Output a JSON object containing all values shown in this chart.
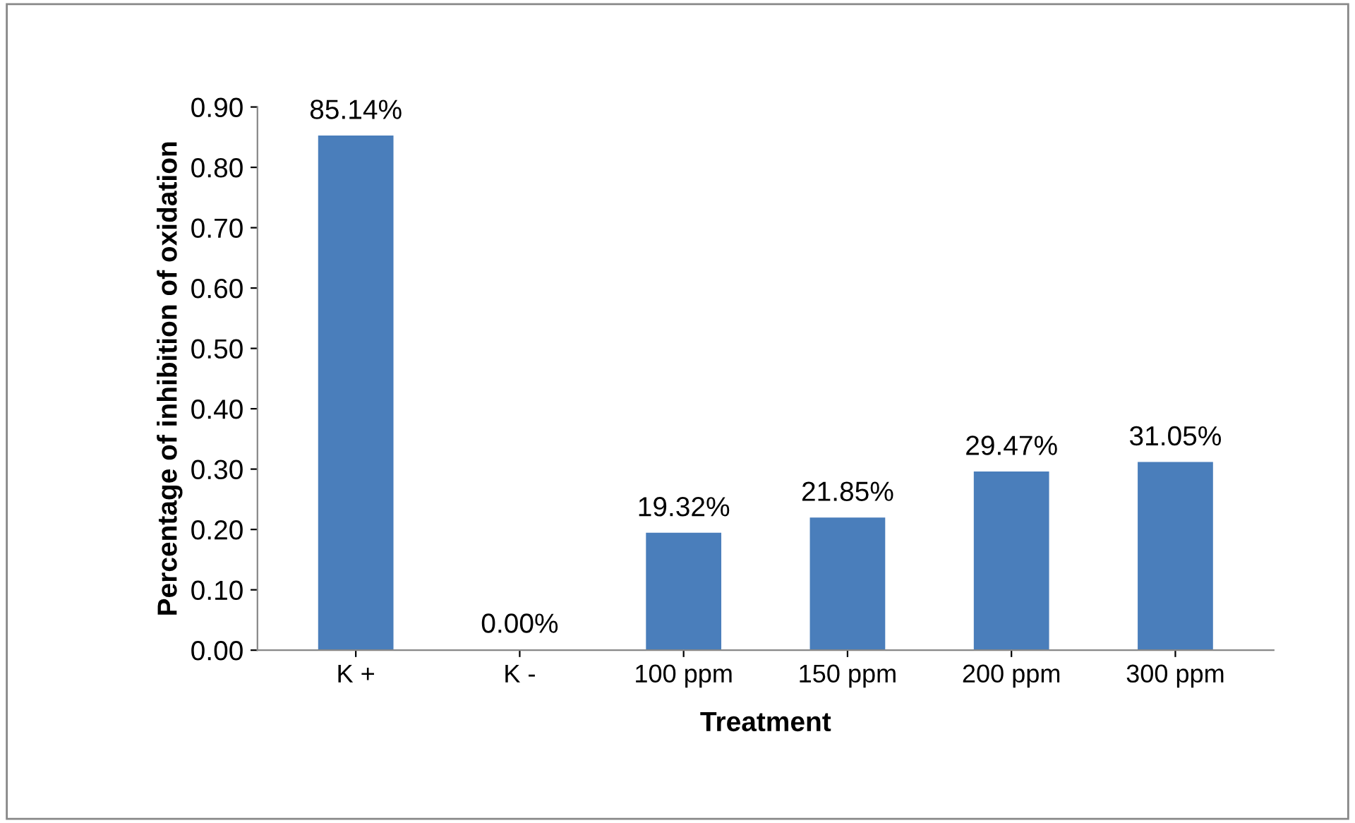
{
  "chart_data": {
    "type": "bar",
    "xlabel": "Treatment",
    "ylabel": "Percentage of inhibition of oxidation",
    "categories": [
      "K +",
      "K -",
      "100 ppm",
      "150 ppm",
      "200 ppm",
      "300 ppm"
    ],
    "values": [
      0.8514,
      0.0,
      0.1932,
      0.2185,
      0.2947,
      0.3105
    ],
    "value_labels": [
      "85.14%",
      "0.00%",
      "19.32%",
      "21.85%",
      "29.47%",
      "31.05%"
    ],
    "color": "#4a7ebb",
    "ylim": [
      0,
      0.9
    ],
    "yticks": [
      {
        "value": 0,
        "label": "0.00"
      },
      {
        "value": 0.1,
        "label": "0.10"
      },
      {
        "value": 0.2,
        "label": "0.20"
      },
      {
        "value": 0.3,
        "label": "0.30"
      },
      {
        "value": 0.4,
        "label": "0.40"
      },
      {
        "value": 0.5,
        "label": "0.50"
      },
      {
        "value": 0.6,
        "label": "0.60"
      },
      {
        "value": 0.7,
        "label": "0.70"
      },
      {
        "value": 0.8,
        "label": "0.80"
      },
      {
        "value": 0.9,
        "label": "0.90"
      }
    ],
    "grid": false,
    "legend": false
  }
}
